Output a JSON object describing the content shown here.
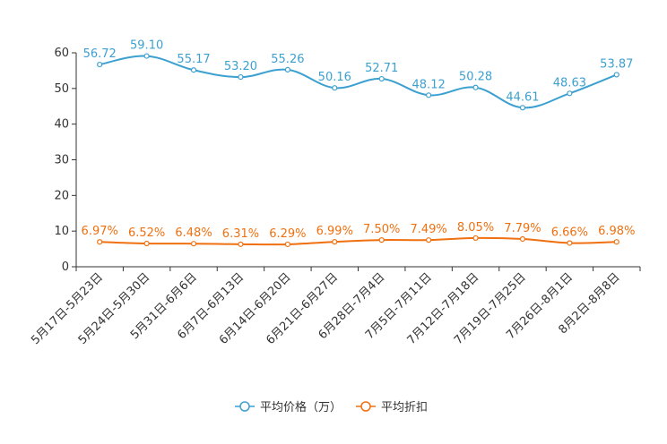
{
  "chart_data": {
    "type": "line",
    "title": "",
    "xlabel": "",
    "ylabel": "",
    "ylim": [
      0,
      60
    ],
    "yticks": [
      0,
      10,
      20,
      30,
      40,
      50,
      60
    ],
    "categories": [
      "5月17日-5月23日",
      "5月24日-5月30日",
      "5月31日-6月6日",
      "6月7日-6月13日",
      "6月14日-6月20日",
      "6月21日-6月27日",
      "6月28日-7月4日",
      "7月5日-7月11日",
      "7月12日-7月18日",
      "7月19日-7月25日",
      "7月26日-8月1日",
      "8月2日-8月8日"
    ],
    "series": [
      {
        "name": "平均价格（万）",
        "color": "#3ca0d0",
        "values": [
          56.72,
          59.1,
          55.17,
          53.2,
          55.26,
          50.16,
          52.71,
          48.12,
          50.28,
          44.61,
          48.63,
          53.87
        ],
        "labels": [
          "56.72",
          "59.10",
          "55.17",
          "53.20",
          "55.26",
          "50.16",
          "52.71",
          "48.12",
          "50.28",
          "44.61",
          "48.63",
          "53.87"
        ]
      },
      {
        "name": "平均折扣",
        "color": "#f07010",
        "values": [
          6.97,
          6.52,
          6.48,
          6.31,
          6.29,
          6.99,
          7.5,
          7.49,
          8.05,
          7.79,
          6.66,
          6.98
        ],
        "labels": [
          "6.97%",
          "6.52%",
          "6.48%",
          "6.31%",
          "6.29%",
          "6.99%",
          "7.50%",
          "7.49%",
          "8.05%",
          "7.79%",
          "6.66%",
          "6.98%"
        ]
      }
    ],
    "grid": false,
    "legend_position": "bottom-center"
  }
}
